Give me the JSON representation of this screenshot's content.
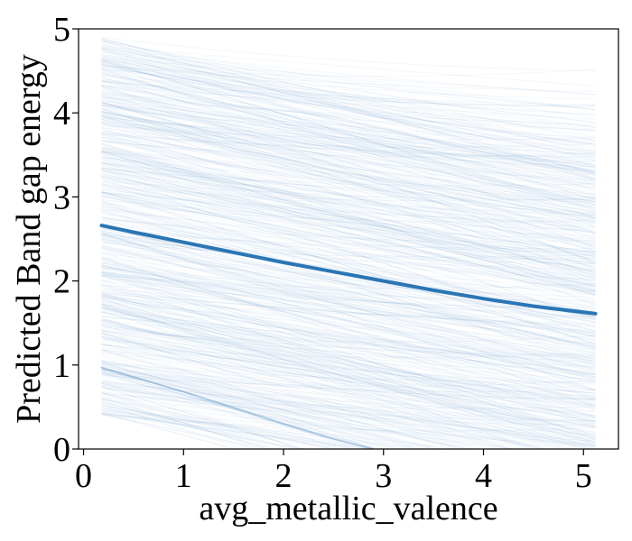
{
  "chart_data": {
    "type": "line",
    "title": "",
    "xlabel": "avg_metallic_valence",
    "ylabel": "Predicted Band gap energy",
    "xlim": [
      -0.05,
      5.35
    ],
    "ylim": [
      0,
      5
    ],
    "xticks": [
      0,
      1,
      2,
      3,
      4,
      5
    ],
    "yticks": [
      0,
      1,
      2,
      3,
      4,
      5
    ],
    "grid": false,
    "legend": "none",
    "colors": {
      "main_line": "#2a76b4",
      "sample_lines": "#4f8fc0"
    },
    "background_samples": {
      "x_range": [
        0.18,
        5.12
      ],
      "count": 600,
      "value_at_start_range": [
        0.4,
        4.9
      ],
      "typical_slope_per_unit": -0.22,
      "opacity": 0.07
    },
    "series": [
      {
        "x": [
          0.18,
          0.5,
          1.0,
          1.5,
          2.0,
          2.5,
          3.0,
          3.5,
          4.0,
          4.5,
          5.12
        ],
        "values": [
          2.66,
          2.58,
          2.46,
          2.34,
          2.22,
          2.11,
          2.0,
          1.89,
          1.79,
          1.7,
          1.61
        ]
      },
      {
        "x": [
          0.18,
          1.0,
          2.0,
          2.5,
          2.9
        ],
        "values": [
          0.97,
          0.68,
          0.3,
          0.12,
          0.0
        ]
      }
    ]
  }
}
